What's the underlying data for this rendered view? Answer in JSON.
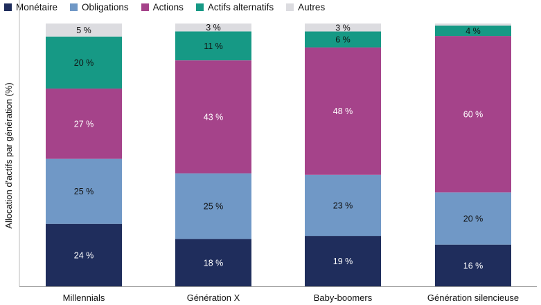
{
  "chart_data": {
    "type": "bar",
    "stacked": true,
    "ylabel": "Allocation d'actifs par génération (%)",
    "xlabel": "",
    "categories": [
      "Millennials",
      "Génération X",
      "Baby-boomers",
      "Génération silencieuse"
    ],
    "series": [
      {
        "name": "Monétaire",
        "color": "#1f2d5c",
        "label_color": "#ffffff",
        "values": [
          24,
          18,
          19,
          16
        ]
      },
      {
        "name": "Obligations",
        "color": "#7098c6",
        "label_color": "#111111",
        "values": [
          25,
          25,
          23,
          20
        ]
      },
      {
        "name": "Actions",
        "color": "#a5438a",
        "label_color": "#ffffff",
        "values": [
          27,
          43,
          48,
          60
        ]
      },
      {
        "name": "Actifs alternatifs",
        "color": "#169985",
        "label_color": "#111111",
        "values": [
          20,
          11,
          6,
          4
        ]
      },
      {
        "name": "Autres",
        "color": "#dcdce0",
        "label_color": "#111111",
        "values": [
          5,
          3,
          3,
          null
        ]
      }
    ],
    "value_suffix": " %",
    "legend_position": "top-left",
    "grid": false
  }
}
